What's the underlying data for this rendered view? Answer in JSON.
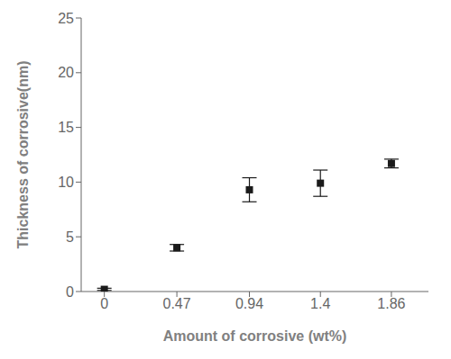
{
  "chart_data": {
    "type": "scatter",
    "xlabel": "Amount of corrosive (wt%)",
    "ylabel": "Thickness of corrosive(nm)",
    "x": [
      0,
      0.47,
      0.94,
      1.4,
      1.86
    ],
    "values": [
      0.2,
      4.0,
      9.3,
      9.9,
      11.7
    ],
    "yerr": [
      0.1,
      0.3,
      1.1,
      1.2,
      0.4
    ],
    "xlim": [
      -0.15,
      2.1
    ],
    "ylim": [
      0,
      25
    ],
    "xticks": [
      0,
      0.47,
      0.94,
      1.4,
      1.86
    ],
    "yticks": [
      0,
      5,
      10,
      15,
      20,
      25
    ],
    "marker": "square",
    "color": "#1a1a1a",
    "grid": false
  }
}
